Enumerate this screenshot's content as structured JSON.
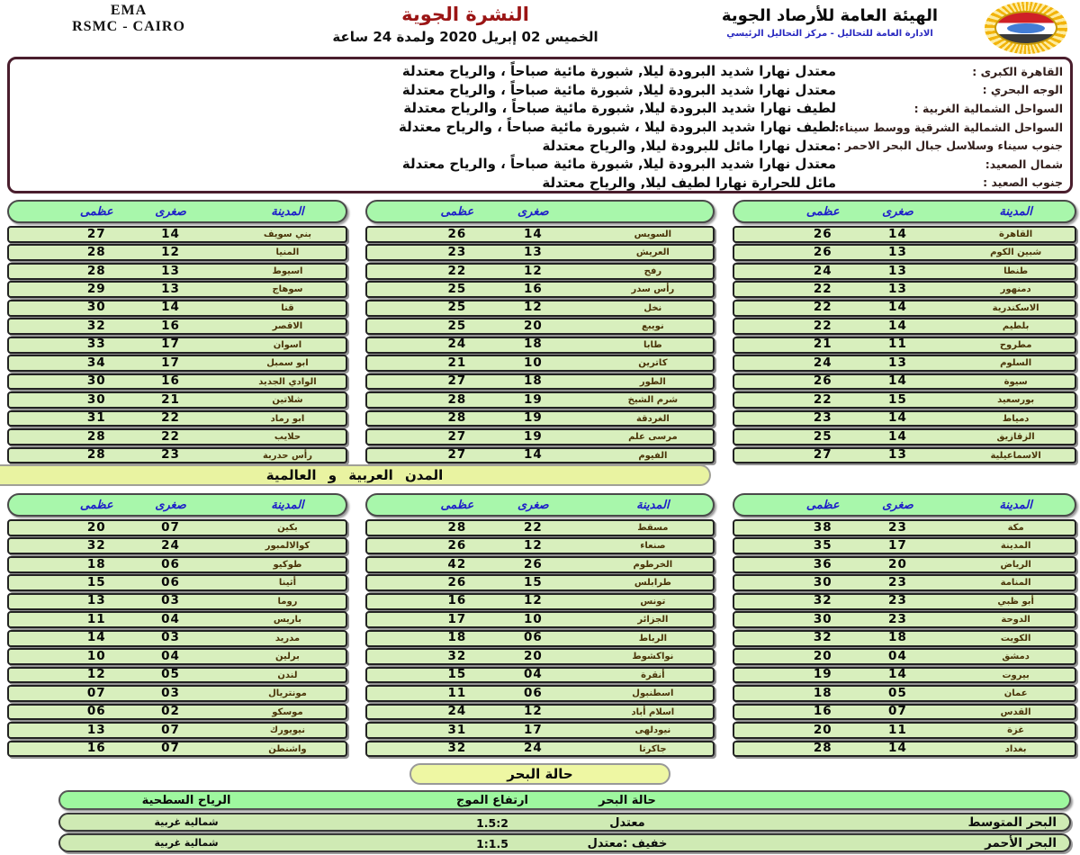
{
  "header": {
    "left_line1": "EMA",
    "left_line2": "RSMC - CAIRO",
    "title": "النشرة الجوية",
    "date_line": "الخميس 02 إبريل 2020   ولمدة 24 ساعة",
    "org_name": "الهيئة العامة للأرصاد الجوية",
    "org_sub": "الادارة العامة للتحاليل - مركز التحاليل الرئيسي",
    "logo_icon": "sun-egypt-flag-emblem"
  },
  "forecast": {
    "rows": [
      {
        "region": "القاهرة الكبرى :",
        "text": "معتدل نهارا شديد البرودة ليلا, شبورة مائية صباحاً ،  والرياح معتدلة"
      },
      {
        "region": "الوجه البحري :",
        "text": "معتدل نهارا شديد البرودة ليلا, شبورة مائية صباحاً ،  والرياح معتدلة"
      },
      {
        "region": "السواحل الشمالية الغربية :",
        "text": "لطيف نهارا شديد البرودة ليلا, شبورة مائية صباحاً ،  والرياح معتدلة"
      },
      {
        "region": "السواحل الشمالية الشرقية ووسط سيناء:",
        "text": "لطيف نهارا شديد البرودة ليلا ، شبورة مائية صباحاً ، والرياح معتدلة"
      },
      {
        "region": "جنوب سيناء وسلاسل جبال البحر الاحمر :",
        "text": "معتدل نهارا مائل للبرودة ليلا,  والرياح معتدلة"
      },
      {
        "region": "شمال الصعيد:",
        "text": "معتدل نهارا شديد البرودة ليلا, شبورة مائية صباحاً ، والرياح  معتدلة"
      },
      {
        "region": "جنوب الصعيد :",
        "text": "مائل  للحرارة نهارا لطيف ليلا,  والرياح  معتدلة"
      }
    ]
  },
  "egypt_tables": [
    {
      "headers": [
        "المدينة",
        "صغرى",
        "عظمى"
      ],
      "rows": [
        {
          "city": "القاهرة",
          "min": "14",
          "max": "26"
        },
        {
          "city": "شبين الكوم",
          "min": "13",
          "max": "26"
        },
        {
          "city": "طنطا",
          "min": "13",
          "max": "24"
        },
        {
          "city": "دمنهور",
          "min": "13",
          "max": "22"
        },
        {
          "city": "الاسكندرية",
          "min": "14",
          "max": "22"
        },
        {
          "city": "بلطيم",
          "min": "14",
          "max": "22"
        },
        {
          "city": "مطروح",
          "min": "11",
          "max": "21"
        },
        {
          "city": "السلوم",
          "min": "13",
          "max": "24"
        },
        {
          "city": "سيوة",
          "min": "14",
          "max": "26"
        },
        {
          "city": "بورسعيد",
          "min": "15",
          "max": "22"
        },
        {
          "city": "دمياط",
          "min": "14",
          "max": "23"
        },
        {
          "city": "الزقازيق",
          "min": "14",
          "max": "25"
        },
        {
          "city": "الاسماعيلية",
          "min": "13",
          "max": "27"
        }
      ]
    },
    {
      "headers": [
        "",
        "صغرى",
        "عظمى"
      ],
      "rows": [
        {
          "city": "السويس",
          "min": "14",
          "max": "26"
        },
        {
          "city": "العريش",
          "min": "13",
          "max": "23"
        },
        {
          "city": "رفح",
          "min": "12",
          "max": "22"
        },
        {
          "city": "رأس سدر",
          "min": "16",
          "max": "25"
        },
        {
          "city": "نخل",
          "min": "12",
          "max": "25"
        },
        {
          "city": "نويبع",
          "min": "20",
          "max": "25"
        },
        {
          "city": "طابا",
          "min": "18",
          "max": "24"
        },
        {
          "city": "كاترين",
          "min": "10",
          "max": "21"
        },
        {
          "city": "الطور",
          "min": "18",
          "max": "27"
        },
        {
          "city": "شرم الشيخ",
          "min": "19",
          "max": "28"
        },
        {
          "city": "الغردقة",
          "min": "19",
          "max": "28"
        },
        {
          "city": "مرسى علم",
          "min": "19",
          "max": "27"
        },
        {
          "city": "الفيوم",
          "min": "14",
          "max": "27"
        }
      ]
    },
    {
      "headers": [
        "المدينة",
        "صغرى",
        "عظمى"
      ],
      "rows": [
        {
          "city": "بني سويف",
          "min": "14",
          "max": "27"
        },
        {
          "city": "المنيا",
          "min": "12",
          "max": "28"
        },
        {
          "city": "اسيوط",
          "min": "13",
          "max": "28"
        },
        {
          "city": "سوهاج",
          "min": "13",
          "max": "29"
        },
        {
          "city": "قنا",
          "min": "14",
          "max": "30"
        },
        {
          "city": "الاقصر",
          "min": "16",
          "max": "32"
        },
        {
          "city": "اسوان",
          "min": "17",
          "max": "33"
        },
        {
          "city": "ابو سمبل",
          "min": "17",
          "max": "34"
        },
        {
          "city": "الوادي الجديد",
          "min": "16",
          "max": "30"
        },
        {
          "city": "شلاتين",
          "min": "21",
          "max": "30"
        },
        {
          "city": "ابو رماد",
          "min": "22",
          "max": "31"
        },
        {
          "city": "حلايب",
          "min": "22",
          "max": "28"
        },
        {
          "city": "رأس حدربة",
          "min": "23",
          "max": "28"
        }
      ]
    }
  ],
  "world_banner": "المدن العربية و العالمية",
  "world_tables": [
    {
      "headers": [
        "المدينة",
        "صغرى",
        "عظمى"
      ],
      "rows": [
        {
          "city": "مكة",
          "min": "23",
          "max": "38"
        },
        {
          "city": "المدينة",
          "min": "17",
          "max": "35"
        },
        {
          "city": "الرياض",
          "min": "20",
          "max": "36"
        },
        {
          "city": "المنامة",
          "min": "23",
          "max": "30"
        },
        {
          "city": "أبو ظبي",
          "min": "23",
          "max": "32"
        },
        {
          "city": "الدوحة",
          "min": "23",
          "max": "30"
        },
        {
          "city": "الكويت",
          "min": "18",
          "max": "32"
        },
        {
          "city": "دمشق",
          "min": "04",
          "max": "20"
        },
        {
          "city": "بيروت",
          "min": "14",
          "max": "19"
        },
        {
          "city": "عمان",
          "min": "05",
          "max": "18"
        },
        {
          "city": "القدس",
          "min": "07",
          "max": "16"
        },
        {
          "city": "غزة",
          "min": "11",
          "max": "20"
        },
        {
          "city": "بغداد",
          "min": "14",
          "max": "28"
        }
      ]
    },
    {
      "headers": [
        "المدينة",
        "صغرى",
        "عظمى"
      ],
      "rows": [
        {
          "city": "مسقط",
          "min": "22",
          "max": "28"
        },
        {
          "city": "صنعاء",
          "min": "12",
          "max": "26"
        },
        {
          "city": "الخرطوم",
          "min": "26",
          "max": "42"
        },
        {
          "city": "طرابلس",
          "min": "15",
          "max": "26"
        },
        {
          "city": "تونس",
          "min": "12",
          "max": "16"
        },
        {
          "city": "الجزائر",
          "min": "10",
          "max": "17"
        },
        {
          "city": "الرباط",
          "min": "06",
          "max": "18"
        },
        {
          "city": "نواكشوط",
          "min": "20",
          "max": "32"
        },
        {
          "city": "أنقرة",
          "min": "04",
          "max": "15"
        },
        {
          "city": "اسطنبول",
          "min": "06",
          "max": "11"
        },
        {
          "city": "اسلام أباد",
          "min": "12",
          "max": "24"
        },
        {
          "city": "نيودلهى",
          "min": "17",
          "max": "31"
        },
        {
          "city": "جاكرتا",
          "min": "24",
          "max": "32"
        }
      ]
    },
    {
      "headers": [
        "المدينة",
        "صغرى",
        "عظمى"
      ],
      "rows": [
        {
          "city": "بكين",
          "min": "07",
          "max": "20"
        },
        {
          "city": "كوالالمبور",
          "min": "24",
          "max": "32"
        },
        {
          "city": "طوكيو",
          "min": "06",
          "max": "18"
        },
        {
          "city": "أثينا",
          "min": "06",
          "max": "15"
        },
        {
          "city": "روما",
          "min": "03",
          "max": "13"
        },
        {
          "city": "باريس",
          "min": "04",
          "max": "11"
        },
        {
          "city": "مدريد",
          "min": "03",
          "max": "14"
        },
        {
          "city": "برلين",
          "min": "04",
          "max": "10"
        },
        {
          "city": "لندن",
          "min": "05",
          "max": "12"
        },
        {
          "city": "مونتريال",
          "min": "03",
          "max": "07"
        },
        {
          "city": "موسكو",
          "min": "02",
          "max": "06"
        },
        {
          "city": "نيويورك",
          "min": "07",
          "max": "13"
        },
        {
          "city": "واشنطن",
          "min": "07",
          "max": "16"
        }
      ]
    }
  ],
  "sea": {
    "banner": "حالة البحر",
    "headers": {
      "state": "حالة البحر",
      "wave": "ارتفاع الموج",
      "wind": "الرياح السطحية"
    },
    "rows": [
      {
        "name": "البحر المتوسط",
        "state": "معتدل",
        "wave": "1.5:2",
        "wind": "شمالية غربية"
      },
      {
        "name": "البحر الأحمر",
        "state": "خفيف :معتدل",
        "wave": "1:1.5",
        "wind": "شمالية غربية"
      }
    ]
  },
  "colors": {
    "title_red": "#9b1515",
    "org_sub_blue": "#2929c0",
    "forecast_border": "#4a1e2d",
    "table_header_green": "#a8f7ab",
    "table_header_text_blue": "#1d1dc9",
    "row_green": "#d8efbd",
    "banner_yellow_green": "#e9f3a1",
    "sea_header_green": "#9ef89f",
    "sea_row_green": "#cfeab4"
  }
}
